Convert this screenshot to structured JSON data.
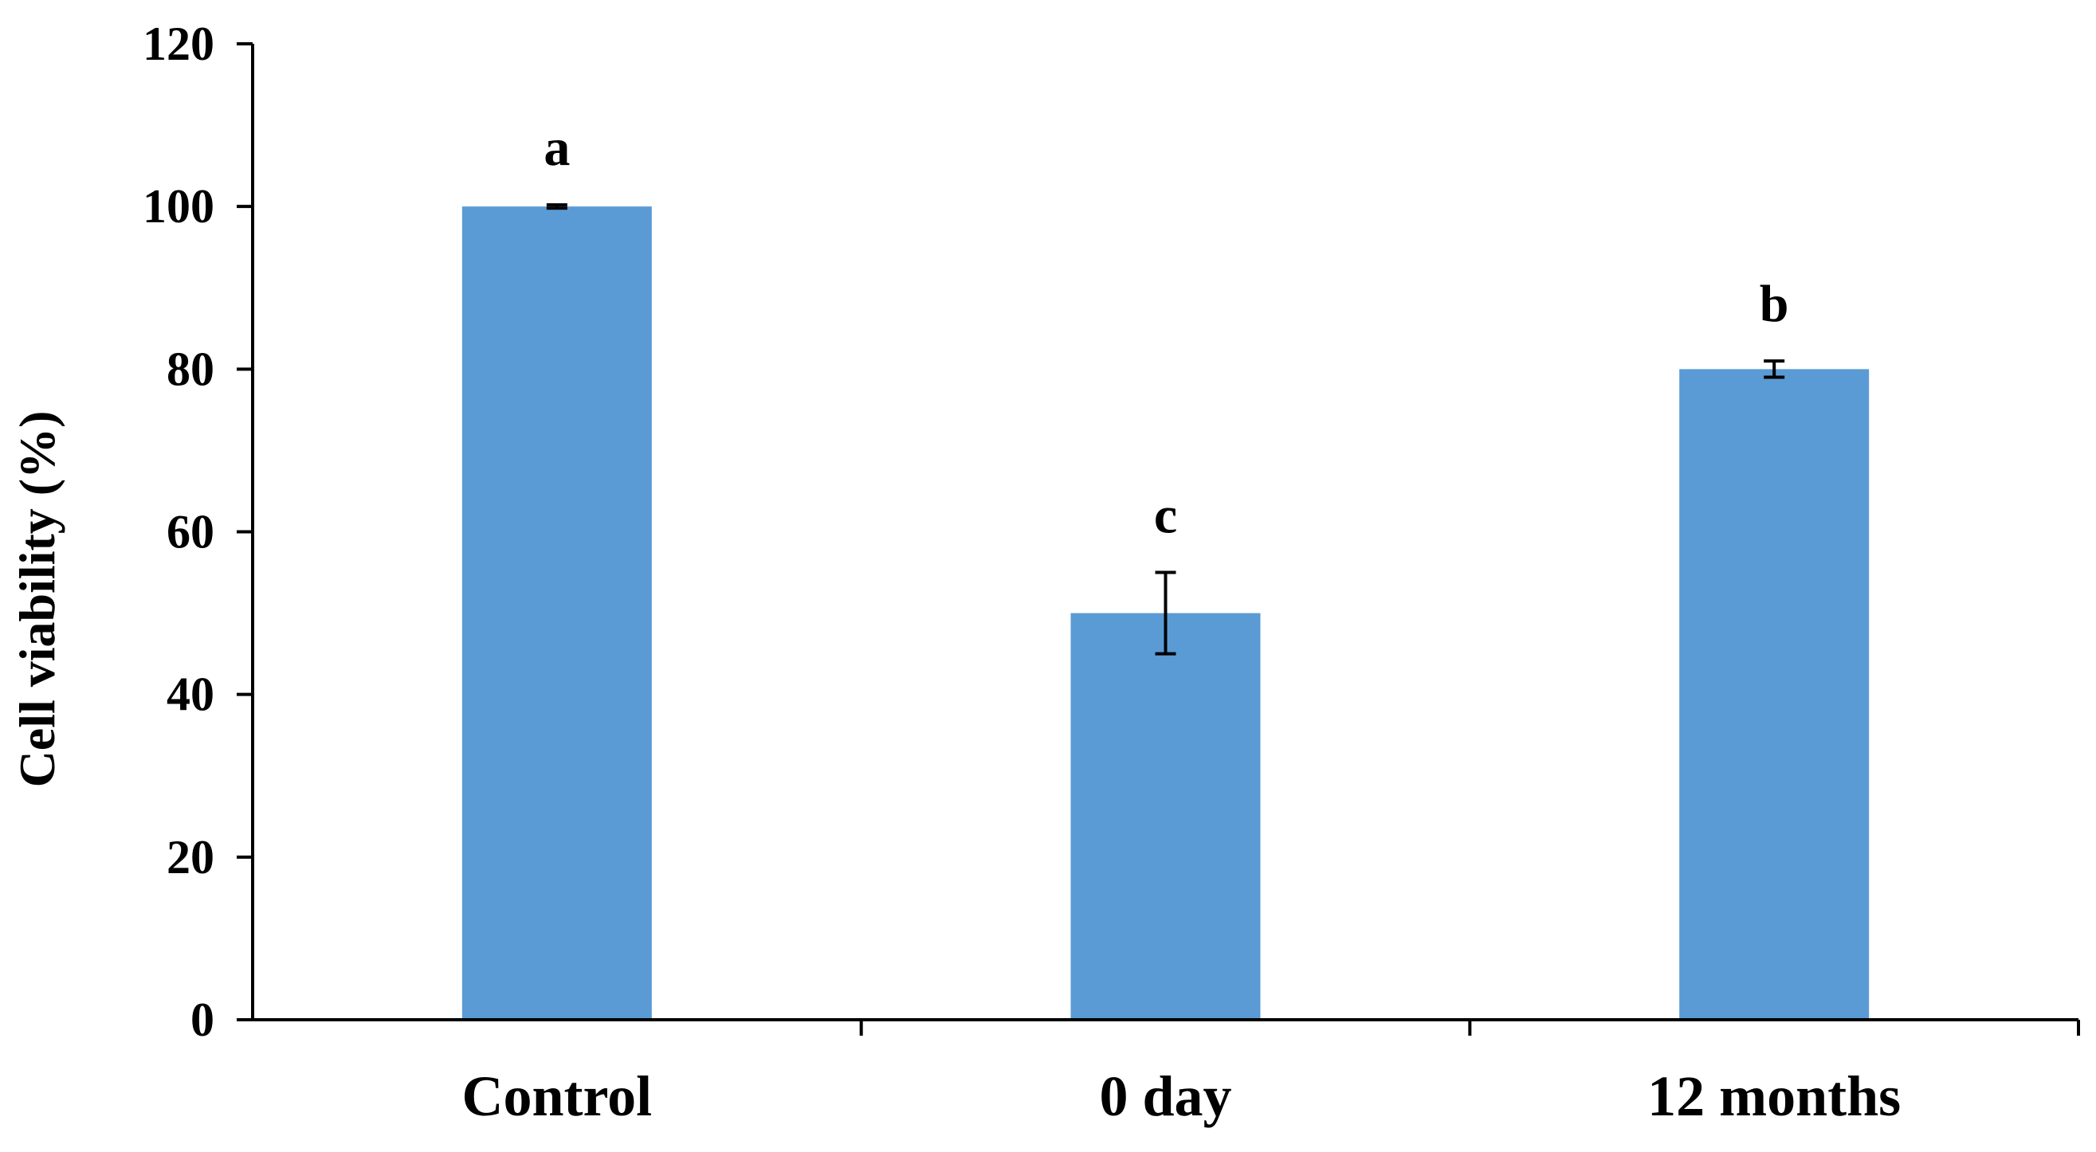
{
  "chart_data": {
    "type": "bar",
    "categories": [
      "Control",
      "0 day",
      "12 months"
    ],
    "values": [
      100,
      50,
      80
    ],
    "errors": [
      0.2,
      5,
      1
    ],
    "significance_labels": [
      "a",
      "c",
      "b"
    ],
    "title": "",
    "xlabel": "",
    "ylabel": "Cell viability (%)",
    "ylim": [
      0,
      120
    ],
    "yticks": [
      0,
      20,
      40,
      60,
      80,
      100,
      120
    ],
    "grid": false,
    "legend": "none",
    "bar_color": "#5B9BD5"
  }
}
